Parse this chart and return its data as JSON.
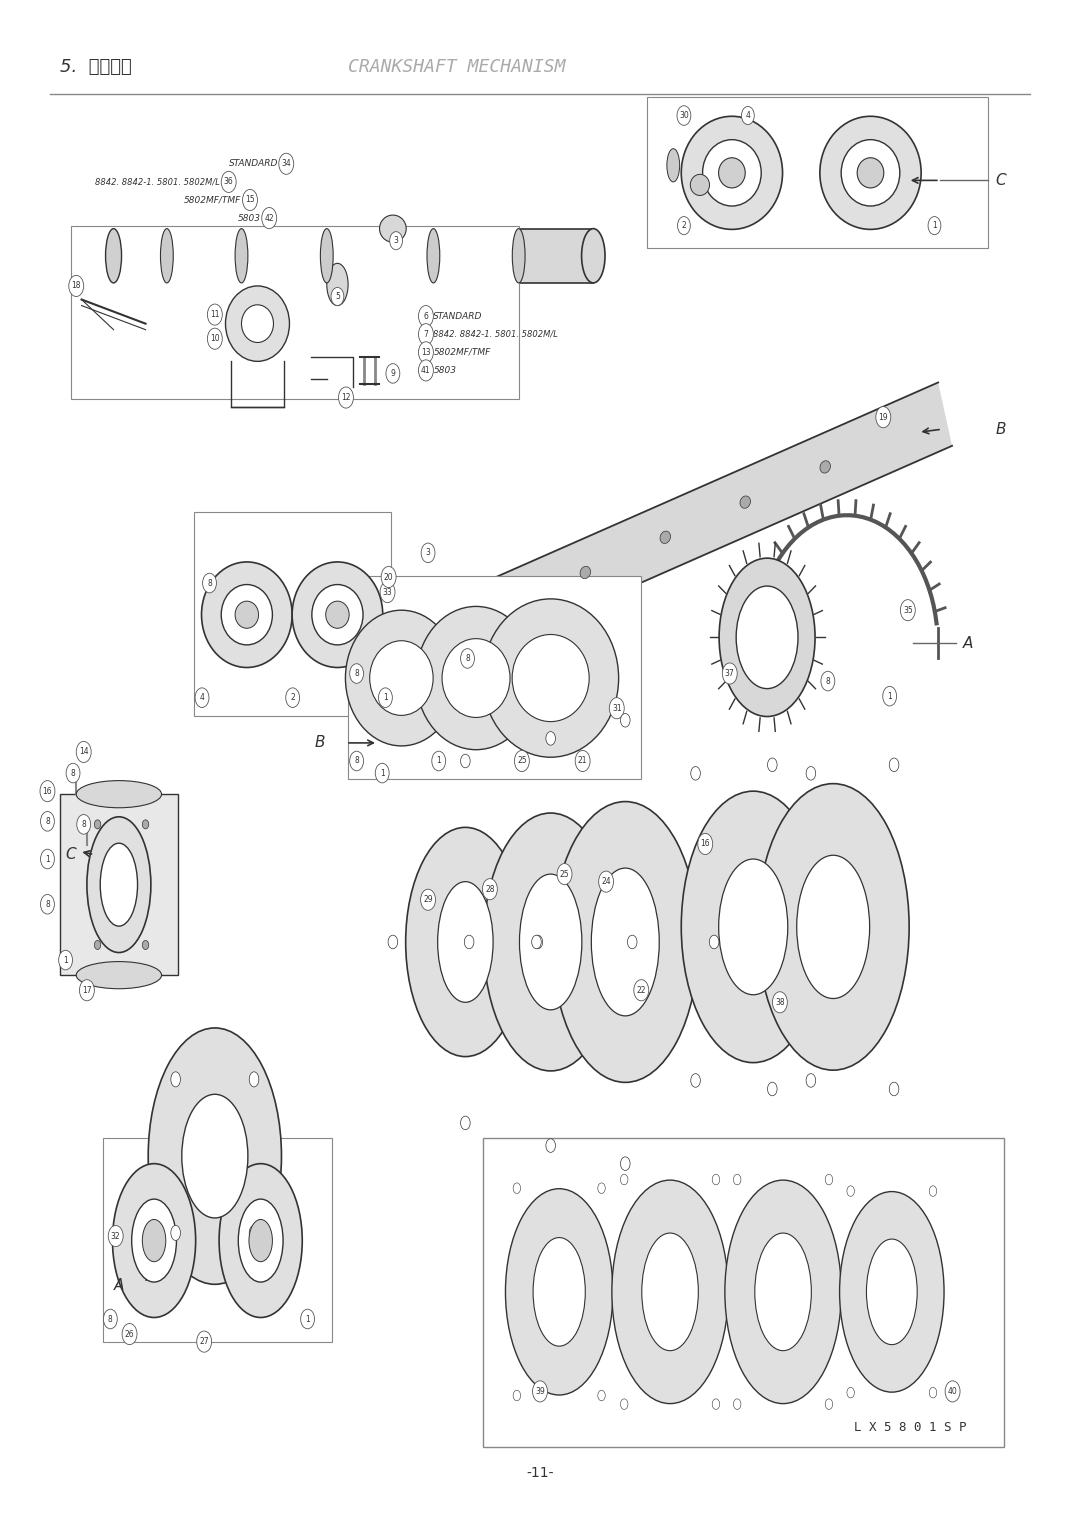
{
  "title_jp": "5.  下軸機構",
  "title_en": "CRANKSHAFT MECHANISM",
  "page_number": "-11-",
  "bg_color": "#ffffff",
  "line_color": "#333333",
  "text_color": "#333333",
  "light_gray": "#aaaaaa",
  "fig_width": 10.8,
  "fig_height": 15.22,
  "lx_text": "L X 5 8 0 1 S P"
}
